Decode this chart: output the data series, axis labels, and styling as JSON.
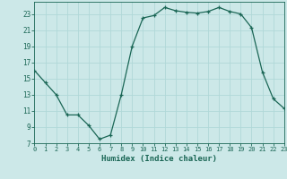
{
  "x": [
    0,
    1,
    2,
    3,
    4,
    5,
    6,
    7,
    8,
    9,
    10,
    11,
    12,
    13,
    14,
    15,
    16,
    17,
    18,
    19,
    20,
    21,
    22,
    23
  ],
  "y": [
    16.0,
    14.5,
    13.0,
    10.5,
    10.5,
    9.2,
    7.5,
    8.0,
    13.0,
    19.0,
    22.5,
    22.8,
    23.8,
    23.4,
    23.2,
    23.1,
    23.3,
    23.8,
    23.3,
    23.0,
    21.3,
    15.8,
    12.5,
    11.3
  ],
  "xlim": [
    0,
    23
  ],
  "ylim": [
    7,
    24.5
  ],
  "yticks": [
    7,
    9,
    11,
    13,
    15,
    17,
    19,
    21,
    23
  ],
  "xticks": [
    0,
    1,
    2,
    3,
    4,
    5,
    6,
    7,
    8,
    9,
    10,
    11,
    12,
    13,
    14,
    15,
    16,
    17,
    18,
    19,
    20,
    21,
    22,
    23
  ],
  "xlabel": "Humidex (Indice chaleur)",
  "line_color": "#1a6655",
  "marker": "+",
  "bg_color": "#cce8e8",
  "grid_color": "#b0d8d8",
  "label_color": "#1a6655",
  "tick_color": "#1a6655"
}
